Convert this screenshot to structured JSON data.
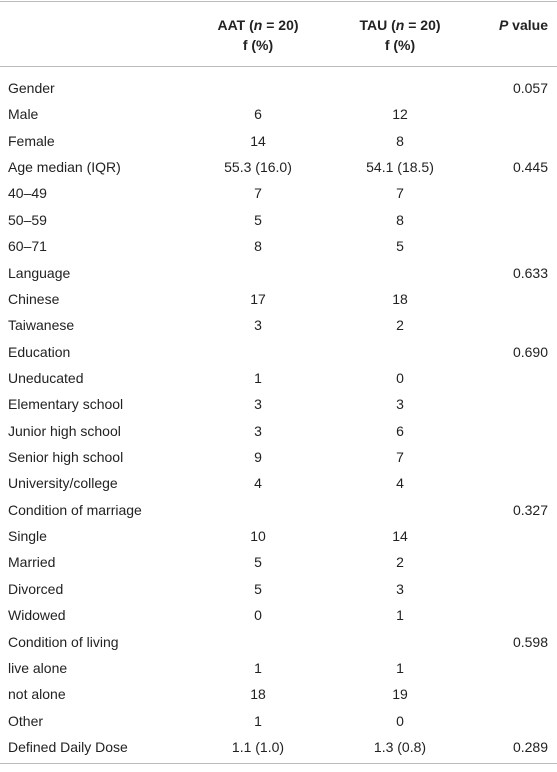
{
  "table": {
    "header": [
      {
        "name": "AAT",
        "open": " (",
        "n": "n",
        "eq": " = 20)",
        "sub": "f (%)"
      },
      {
        "name": "TAU",
        "open": " (",
        "n": "n",
        "eq": " = 20)",
        "sub": "f (%)"
      },
      {
        "p": "P",
        "rest": " value"
      }
    ],
    "rows": [
      {
        "label": "Gender",
        "p": "0.057"
      },
      {
        "label": "Male",
        "aat": "6",
        "tau": "12"
      },
      {
        "label": "Female",
        "aat": "14",
        "tau": "8"
      },
      {
        "label": "Age median (IQR)",
        "aat": "55.3 (16.0)",
        "tau": "54.1 (18.5)",
        "p": "0.445"
      },
      {
        "label": "40–49",
        "aat": "7",
        "tau": "7"
      },
      {
        "label": "50–59",
        "aat": "5",
        "tau": "8"
      },
      {
        "label": "60–71",
        "aat": "8",
        "tau": "5"
      },
      {
        "label": "Language",
        "p": "0.633"
      },
      {
        "label": "Chinese",
        "aat": "17",
        "tau": "18"
      },
      {
        "label": "Taiwanese",
        "aat": "3",
        "tau": "2"
      },
      {
        "label": "Education",
        "p": "0.690"
      },
      {
        "label": "Uneducated",
        "aat": "1",
        "tau": "0"
      },
      {
        "label": "Elementary school",
        "aat": "3",
        "tau": "3"
      },
      {
        "label": "Junior high school",
        "aat": "3",
        "tau": "6"
      },
      {
        "label": "Senior high school",
        "aat": "9",
        "tau": "7"
      },
      {
        "label": "University/college",
        "aat": "4",
        "tau": "4"
      },
      {
        "label": "Condition of marriage",
        "p": "0.327"
      },
      {
        "label": "Single",
        "aat": "10",
        "tau": "14"
      },
      {
        "label": "Married",
        "aat": "5",
        "tau": "2"
      },
      {
        "label": "Divorced",
        "aat": "5",
        "tau": "3"
      },
      {
        "label": "Widowed",
        "aat": "0",
        "tau": "1"
      },
      {
        "label": "Condition of living",
        "p": "0.598"
      },
      {
        "label": "live alone",
        "aat": "1",
        "tau": "1"
      },
      {
        "label": "not alone",
        "aat": "18",
        "tau": "19"
      },
      {
        "label": "Other",
        "aat": "1",
        "tau": "0"
      },
      {
        "label": "Defined Daily Dose",
        "aat": "1.1 (1.0)",
        "tau": "1.3 (0.8)",
        "p": "0.289"
      }
    ]
  }
}
